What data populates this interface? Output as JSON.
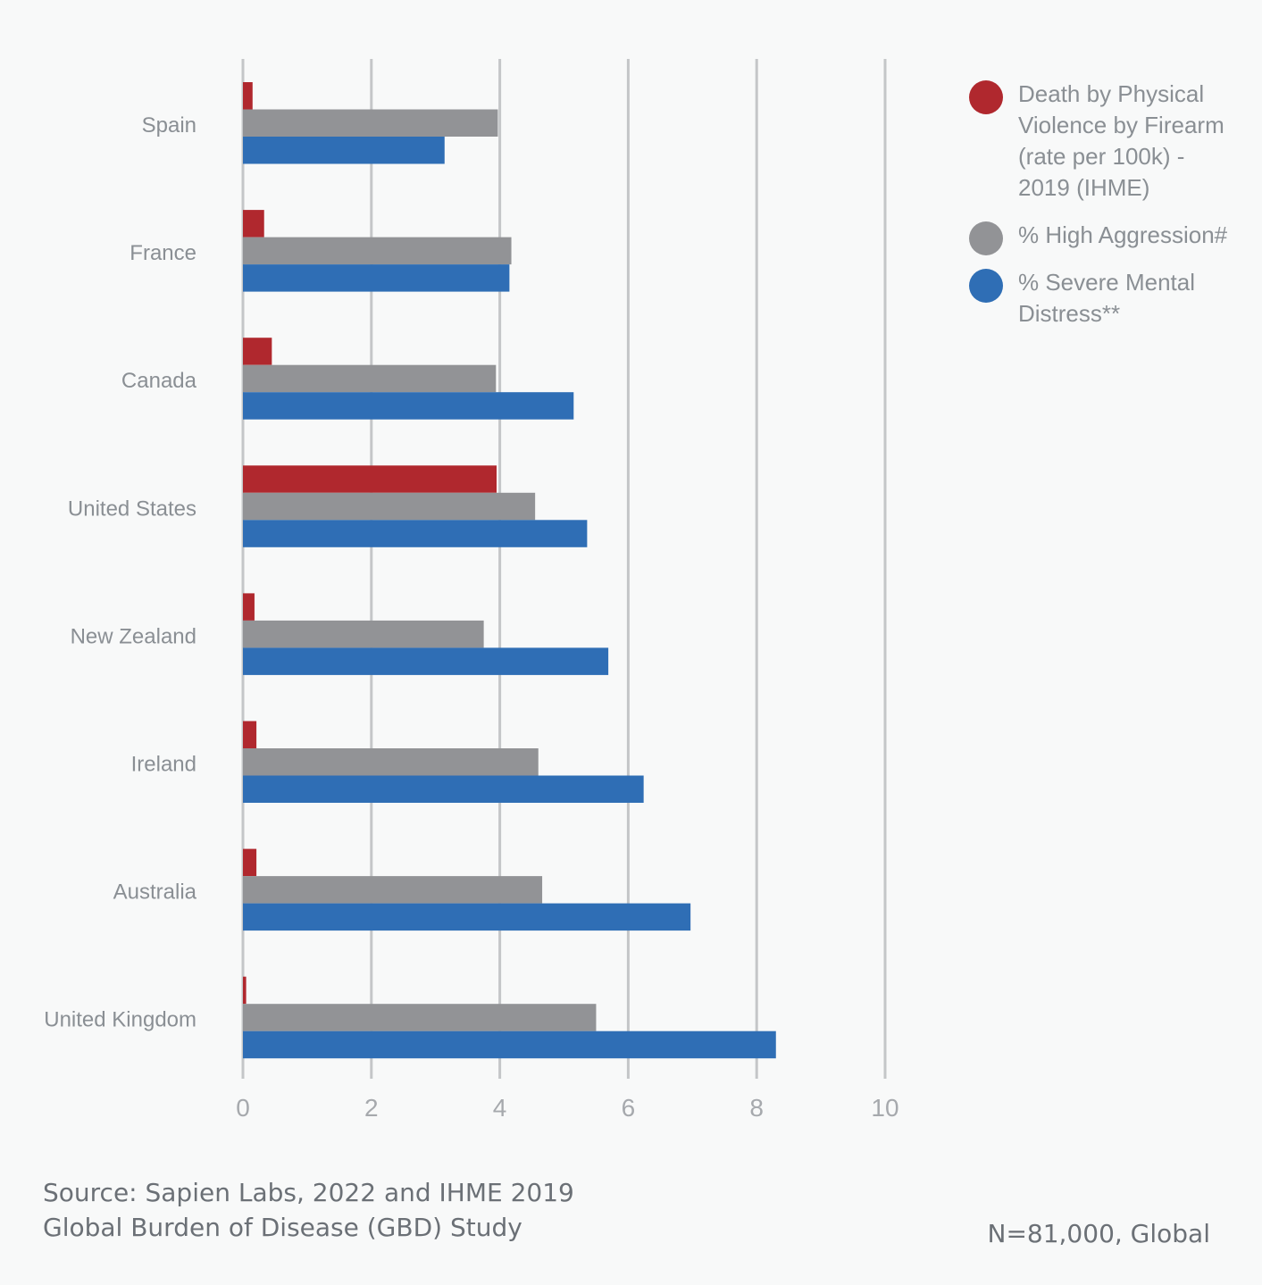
{
  "chart_data": {
    "type": "bar",
    "orientation": "horizontal",
    "categories": [
      "Spain",
      "France",
      "Canada",
      "United States",
      "New Zealand",
      "Ireland",
      "Australia",
      "United Kingdom"
    ],
    "series": [
      {
        "name": "Death by Physical Violence by Firearm (rate per 100k) - 2019 (IHME)",
        "color": "#b0282e",
        "values": [
          0.15,
          0.33,
          0.45,
          3.95,
          0.18,
          0.21,
          0.21,
          0.05
        ]
      },
      {
        "name": "% High Aggression#",
        "color": "#929396",
        "values": [
          3.97,
          4.18,
          3.94,
          4.55,
          3.75,
          4.6,
          4.66,
          5.5
        ]
      },
      {
        "name": "% Severe Mental Distress**",
        "color": "#2f6eb5",
        "values": [
          3.14,
          4.15,
          5.15,
          5.36,
          5.69,
          6.24,
          6.97,
          8.3
        ]
      }
    ],
    "xlim": [
      0,
      10
    ],
    "xticks": [
      "0",
      "2",
      "4",
      "6",
      "8",
      "10"
    ],
    "grid": true,
    "legend_position": "top-right"
  },
  "legend": {
    "items": [
      {
        "lines": [
          "Death by Physical",
          "Violence by Firearm",
          "(rate per 100k) -",
          "2019 (IHME)"
        ],
        "color": "#b0282e"
      },
      {
        "lines": [
          "% High Aggression#"
        ],
        "color": "#929396"
      },
      {
        "lines": [
          "% Severe Mental",
          "Distress**"
        ],
        "color": "#2f6eb5"
      }
    ]
  },
  "source": {
    "line1": "Source: Sapien Labs, 2022 and IHME 2019",
    "line2": "Global Burden of Disease (GBD) Study"
  },
  "sample_note": "N=81,000, Global"
}
